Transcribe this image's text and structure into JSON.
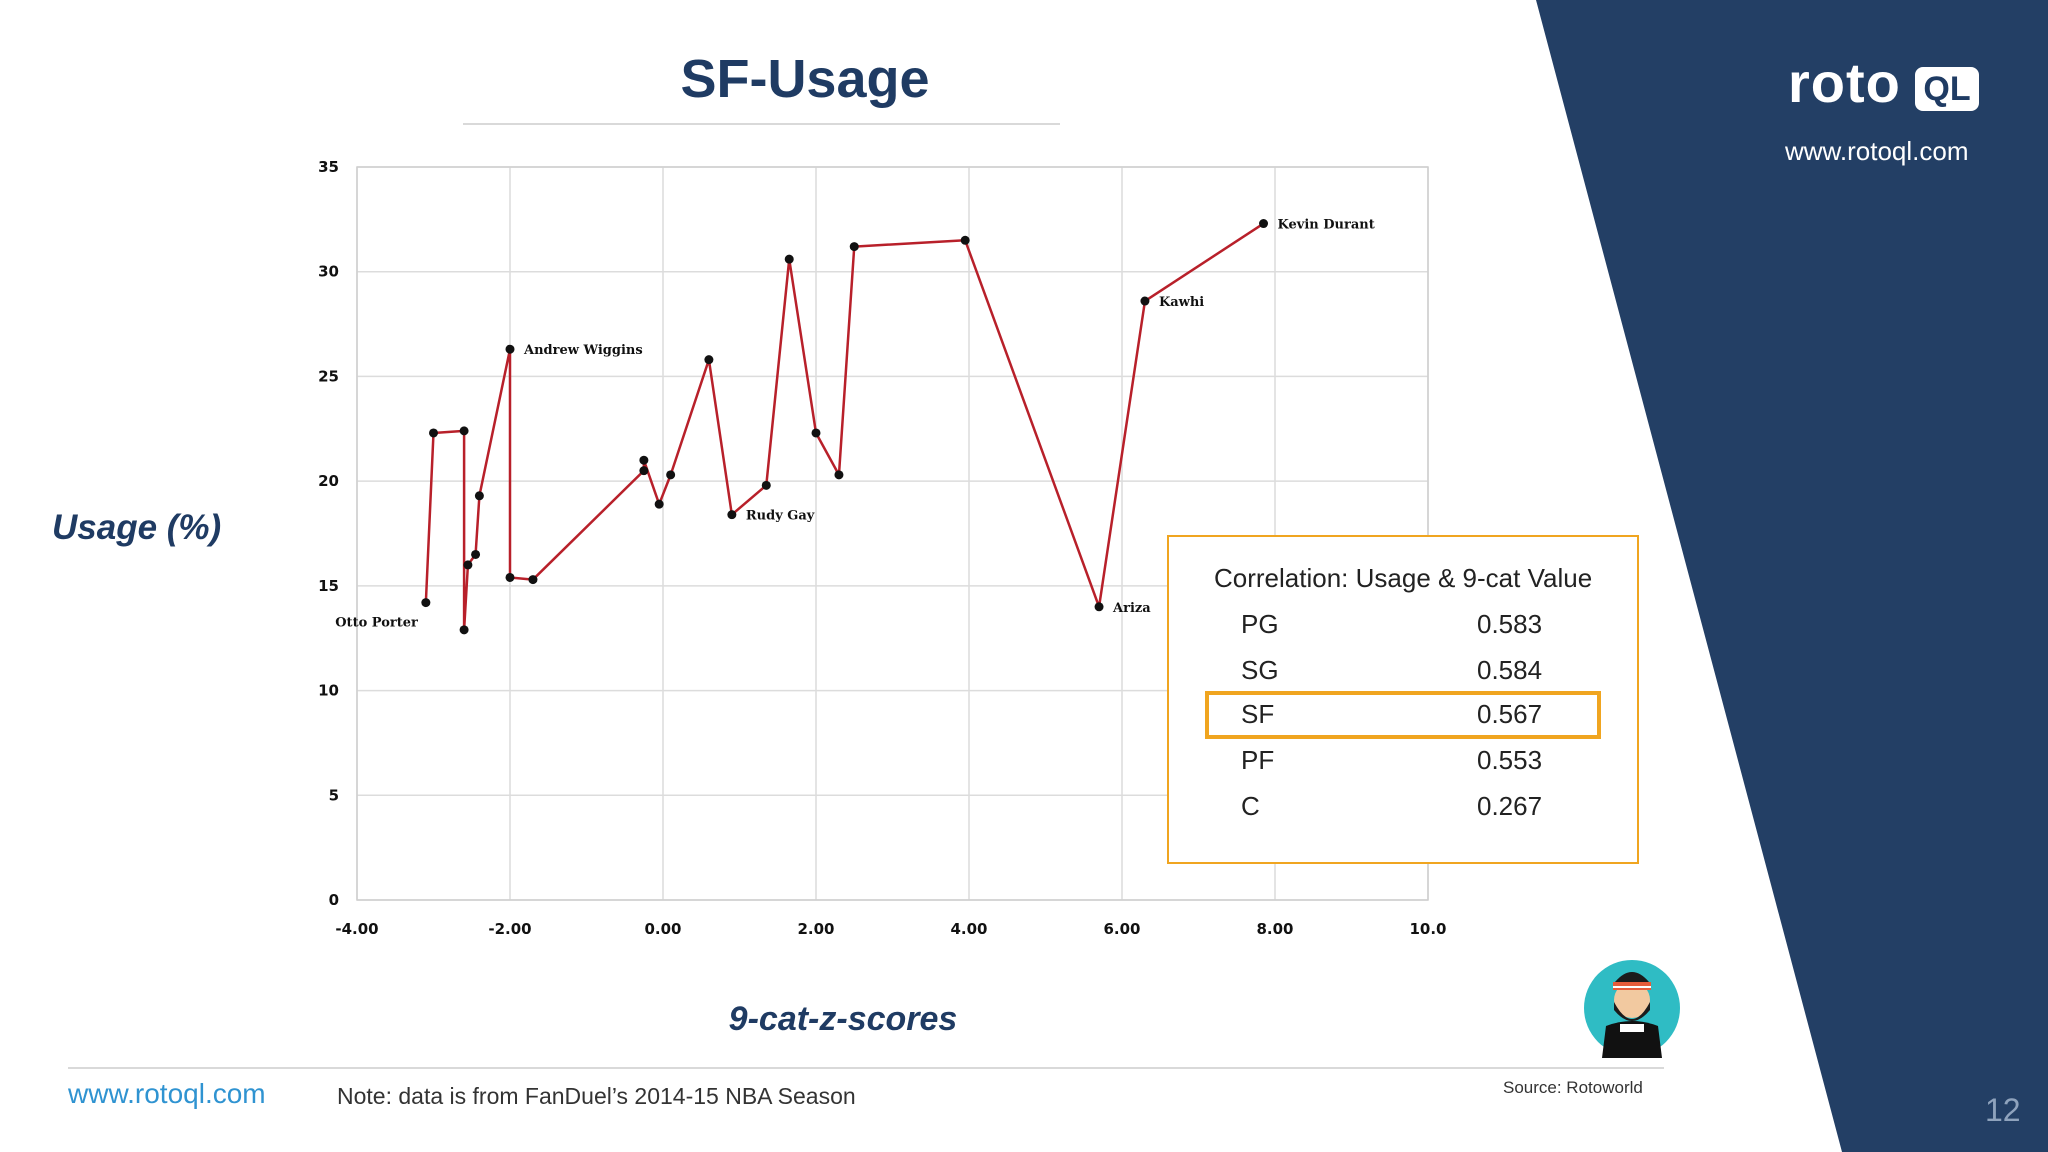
{
  "slide": {
    "title": "SF-Usage",
    "brand_url": "www.rotoql.com",
    "logo_word": "roto",
    "logo_box": "QL",
    "footer_url": "www.rotoql.com",
    "note": "Note: data is from FanDuel’s 2014-15 NBA Season",
    "source": "Source: Rotoworld",
    "page_number": "12",
    "colors": {
      "navy": "#1f3b63",
      "accent": "#f0a520",
      "line": "#b8202a",
      "link": "#2f93d1"
    },
    "avatar_icon": "bearded-player-avatar"
  },
  "axis_titles": {
    "y": "Usage (%)",
    "x": "9-cat-z-scores"
  },
  "correlation": {
    "title": "Correlation: Usage & 9-cat Value",
    "rows": [
      {
        "pos": "PG",
        "value": "0.583"
      },
      {
        "pos": "SG",
        "value": "0.584"
      },
      {
        "pos": "SF",
        "value": "0.567",
        "highlight": true
      },
      {
        "pos": "PF",
        "value": "0.553"
      },
      {
        "pos": "C",
        "value": "0.267"
      }
    ]
  },
  "chart_data": {
    "type": "line",
    "xlim": [
      -4,
      10
    ],
    "ylim": [
      0,
      35
    ],
    "x_ticks": [
      -4,
      -2,
      0,
      2,
      4,
      6,
      8,
      10
    ],
    "x_tick_labels": [
      "-4.00",
      "-2.00",
      "0.00",
      "2.00",
      "4.00",
      "6.00",
      "8.00",
      "10.0"
    ],
    "y_ticks": [
      0,
      5,
      10,
      15,
      20,
      25,
      30,
      35
    ],
    "y_tick_labels": [
      "0",
      "5",
      "10",
      "15",
      "20",
      "25",
      "30",
      "35"
    ],
    "grid": true,
    "line_color": "#b8202a",
    "points": [
      {
        "x": -3.1,
        "y": 14.2,
        "label": "Otto Porter"
      },
      {
        "x": -3.0,
        "y": 22.3
      },
      {
        "x": -2.6,
        "y": 22.4
      },
      {
        "x": -2.6,
        "y": 12.9
      },
      {
        "x": -2.55,
        "y": 16.0
      },
      {
        "x": -2.45,
        "y": 16.5
      },
      {
        "x": -2.4,
        "y": 19.3
      },
      {
        "x": -2.0,
        "y": 26.3,
        "label": "Andrew Wiggins"
      },
      {
        "x": -2.0,
        "y": 15.4
      },
      {
        "x": -1.7,
        "y": 15.3
      },
      {
        "x": -0.25,
        "y": 20.5
      },
      {
        "x": -0.25,
        "y": 21.0
      },
      {
        "x": -0.05,
        "y": 18.9
      },
      {
        "x": 0.1,
        "y": 20.3
      },
      {
        "x": 0.6,
        "y": 25.8
      },
      {
        "x": 0.9,
        "y": 18.4,
        "label": "Rudy Gay"
      },
      {
        "x": 1.35,
        "y": 19.8
      },
      {
        "x": 1.65,
        "y": 30.6
      },
      {
        "x": 2.0,
        "y": 22.3
      },
      {
        "x": 2.3,
        "y": 20.3
      },
      {
        "x": 2.5,
        "y": 31.2
      },
      {
        "x": 3.95,
        "y": 31.5
      },
      {
        "x": 5.7,
        "y": 14.0,
        "label": "Ariza"
      },
      {
        "x": 6.3,
        "y": 28.6,
        "label": "Kawhi"
      },
      {
        "x": 7.85,
        "y": 32.3,
        "label": "Kevin Durant"
      }
    ]
  }
}
